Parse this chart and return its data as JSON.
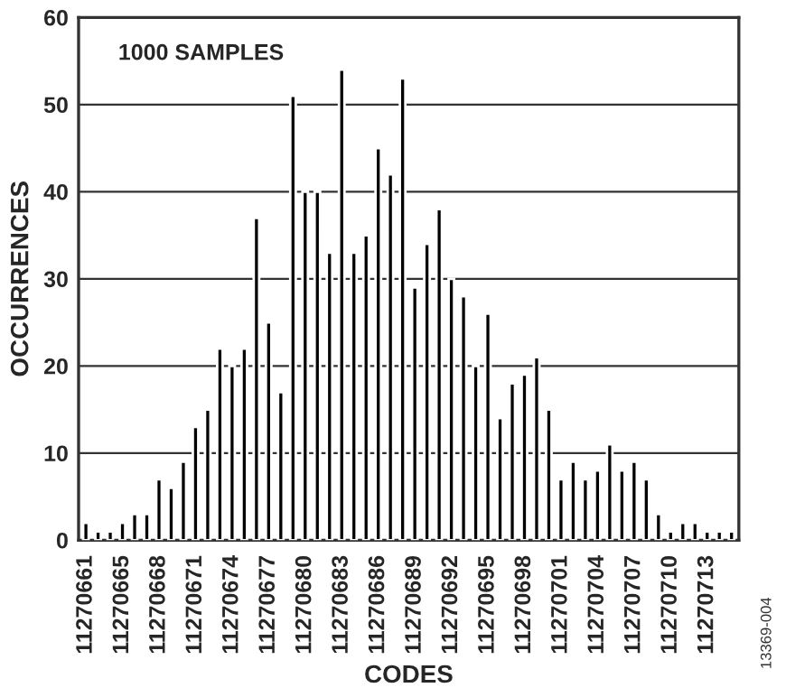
{
  "chart_data": {
    "type": "bar",
    "xlabel": "CODES",
    "ylabel": "OCCURRENCES",
    "categories": [
      "11270661",
      null,
      null,
      "11270665",
      null,
      null,
      "11270668",
      null,
      null,
      "11270671",
      null,
      null,
      "11270674",
      null,
      null,
      "11270677",
      null,
      null,
      "11270680",
      null,
      null,
      "11270683",
      null,
      null,
      "11270686",
      null,
      null,
      "11270689",
      null,
      null,
      "11270692",
      null,
      null,
      "11270695",
      null,
      null,
      "11270698",
      null,
      null,
      "11270701",
      null,
      null,
      "11270704",
      null,
      null,
      "11270707",
      null,
      null,
      "11270710",
      null,
      null,
      "11270713",
      null,
      null
    ],
    "values": [
      2,
      1,
      1,
      2,
      3,
      3,
      7,
      6,
      9,
      13,
      15,
      22,
      20,
      22,
      37,
      25,
      17,
      51,
      40,
      40,
      33,
      54,
      33,
      35,
      45,
      42,
      53,
      29,
      34,
      38,
      30,
      28,
      20,
      26,
      14,
      18,
      19,
      21,
      15,
      7,
      9,
      7,
      8,
      11,
      8,
      9,
      7,
      3,
      1,
      2,
      2,
      1,
      1,
      1
    ],
    "color": "#000000",
    "ylim": [
      0,
      60
    ],
    "yticks": [
      0,
      10,
      20,
      30,
      40,
      50,
      60
    ],
    "grid": "y",
    "annotations": [
      {
        "text": "1000 SAMPLES"
      },
      {
        "text": "13369-004"
      }
    ]
  }
}
